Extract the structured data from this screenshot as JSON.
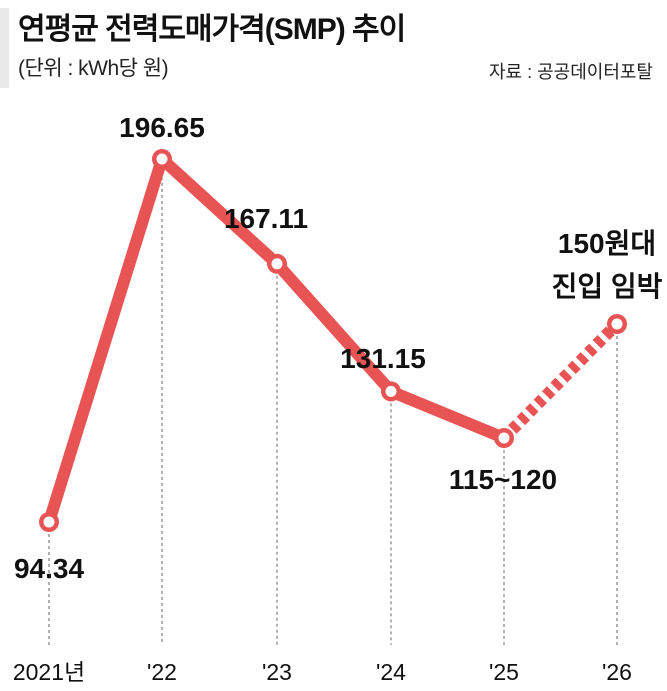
{
  "header": {
    "title": "연평균 전력도매가격(SMP) 추이",
    "unit": "(단위 : kWh당 원)",
    "source": "자료 : 공공데이터포탈"
  },
  "chart_data": {
    "type": "line",
    "categories": [
      "2021년",
      "'22",
      "'23",
      "'24",
      "'25",
      "'26"
    ],
    "values": [
      94.34,
      196.65,
      167.11,
      131.15,
      117.5,
      150
    ],
    "value_labels": [
      "94.34",
      "196.65",
      "167.11",
      "131.15",
      "115~120",
      "150원대 진입 임박"
    ],
    "label_lines": [
      [
        "94.34"
      ],
      [
        "196.65"
      ],
      [
        "167.11"
      ],
      [
        "131.15"
      ],
      [
        "115~120"
      ],
      [
        "150원대",
        "진입 임박"
      ]
    ],
    "projected_from_index": 4,
    "ylim": [
      80,
      205
    ],
    "line_color": "#e85454",
    "grid": false
  }
}
